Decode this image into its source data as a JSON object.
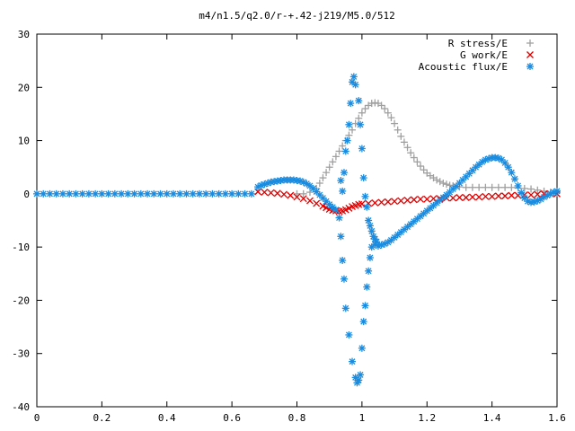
{
  "chart_data": {
    "type": "scatter",
    "title": "m4/n1.5/q2.0/r-+.42-j219/M5.0/512",
    "xlabel": "",
    "ylabel": "",
    "xlim": [
      0,
      1.6
    ],
    "ylim": [
      -40,
      30
    ],
    "xticks": [
      "0",
      "0.2",
      "0.4",
      "0.6",
      "0.8",
      "1",
      "1.2",
      "1.4",
      "1.6"
    ],
    "yticks": [
      "-40",
      "-30",
      "-20",
      "-10",
      "0",
      "10",
      "20",
      "30"
    ],
    "grid": false,
    "legend_position": "top-right",
    "series": [
      {
        "name": "R stress/E",
        "marker": "plus",
        "color": "#a0a0a0",
        "points": [
          [
            0.8,
            0
          ],
          [
            0.82,
            0
          ],
          [
            0.84,
            0.3
          ],
          [
            0.86,
            1.0
          ],
          [
            0.87,
            2.0
          ],
          [
            0.88,
            3.0
          ],
          [
            0.89,
            4.0
          ],
          [
            0.9,
            5.0
          ],
          [
            0.91,
            6.0
          ],
          [
            0.92,
            7.0
          ],
          [
            0.93,
            8.0
          ],
          [
            0.94,
            9.0
          ],
          [
            0.95,
            10.0
          ],
          [
            0.96,
            11.0
          ],
          [
            0.97,
            12.0
          ],
          [
            0.98,
            13.2
          ],
          [
            0.99,
            14.2
          ],
          [
            1.0,
            15.2
          ],
          [
            1.01,
            16.0
          ],
          [
            1.02,
            16.6
          ],
          [
            1.03,
            17.0
          ],
          [
            1.04,
            17.1
          ],
          [
            1.05,
            17.0
          ],
          [
            1.06,
            16.6
          ],
          [
            1.07,
            16.0
          ],
          [
            1.08,
            15.2
          ],
          [
            1.09,
            14.3
          ],
          [
            1.1,
            13.2
          ],
          [
            1.11,
            12.0
          ],
          [
            1.12,
            10.8
          ],
          [
            1.13,
            9.7
          ],
          [
            1.14,
            8.7
          ],
          [
            1.15,
            7.7
          ],
          [
            1.16,
            6.8
          ],
          [
            1.17,
            6.0
          ],
          [
            1.18,
            5.2
          ],
          [
            1.19,
            4.5
          ],
          [
            1.2,
            3.9
          ],
          [
            1.21,
            3.4
          ],
          [
            1.22,
            3.0
          ],
          [
            1.23,
            2.6
          ],
          [
            1.24,
            2.3
          ],
          [
            1.25,
            2.0
          ],
          [
            1.26,
            1.8
          ],
          [
            1.27,
            1.6
          ],
          [
            1.28,
            1.5
          ],
          [
            1.29,
            1.4
          ],
          [
            1.3,
            1.3
          ],
          [
            1.32,
            1.2
          ],
          [
            1.34,
            1.2
          ],
          [
            1.36,
            1.2
          ],
          [
            1.38,
            1.2
          ],
          [
            1.4,
            1.2
          ],
          [
            1.42,
            1.2
          ],
          [
            1.44,
            1.2
          ],
          [
            1.46,
            1.2
          ],
          [
            1.48,
            1.1
          ],
          [
            1.5,
            1.0
          ],
          [
            1.52,
            0.9
          ],
          [
            1.54,
            0.7
          ],
          [
            1.56,
            0.5
          ],
          [
            1.58,
            0.3
          ],
          [
            1.6,
            0.2
          ]
        ]
      },
      {
        "name": "G work/E",
        "marker": "cross",
        "color": "#e00000",
        "points": [
          [
            0.68,
            0.4
          ],
          [
            0.7,
            0.3
          ],
          [
            0.72,
            0.2
          ],
          [
            0.74,
            0.1
          ],
          [
            0.76,
            -0.1
          ],
          [
            0.78,
            -0.3
          ],
          [
            0.8,
            -0.6
          ],
          [
            0.82,
            -0.9
          ],
          [
            0.84,
            -1.3
          ],
          [
            0.86,
            -1.8
          ],
          [
            0.88,
            -2.3
          ],
          [
            0.89,
            -2.6
          ],
          [
            0.9,
            -2.9
          ],
          [
            0.91,
            -3.1
          ],
          [
            0.92,
            -3.2
          ],
          [
            0.93,
            -3.3
          ],
          [
            0.94,
            -3.2
          ],
          [
            0.95,
            -3.0
          ],
          [
            0.96,
            -2.7
          ],
          [
            0.97,
            -2.4
          ],
          [
            0.98,
            -2.2
          ],
          [
            0.99,
            -2.0
          ],
          [
            1.0,
            -1.9
          ],
          [
            1.02,
            -1.8
          ],
          [
            1.04,
            -1.7
          ],
          [
            1.06,
            -1.6
          ],
          [
            1.08,
            -1.5
          ],
          [
            1.1,
            -1.4
          ],
          [
            1.12,
            -1.3
          ],
          [
            1.14,
            -1.2
          ],
          [
            1.16,
            -1.1
          ],
          [
            1.18,
            -1.0
          ],
          [
            1.2,
            -1.0
          ],
          [
            1.22,
            -0.9
          ],
          [
            1.24,
            -0.9
          ],
          [
            1.26,
            -0.8
          ],
          [
            1.28,
            -0.8
          ],
          [
            1.3,
            -0.7
          ],
          [
            1.32,
            -0.7
          ],
          [
            1.34,
            -0.6
          ],
          [
            1.36,
            -0.6
          ],
          [
            1.38,
            -0.5
          ],
          [
            1.4,
            -0.5
          ],
          [
            1.42,
            -0.4
          ],
          [
            1.44,
            -0.4
          ],
          [
            1.46,
            -0.3
          ],
          [
            1.48,
            -0.3
          ],
          [
            1.5,
            -0.2
          ],
          [
            1.52,
            -0.2
          ],
          [
            1.54,
            -0.1
          ],
          [
            1.56,
            0
          ],
          [
            1.58,
            0
          ],
          [
            1.6,
            0
          ]
        ]
      },
      {
        "name": "Acoustic flux/E",
        "marker": "star",
        "color": "#1a8ce0",
        "points": [
          [
            0.0,
            0
          ],
          [
            0.02,
            0
          ],
          [
            0.04,
            0
          ],
          [
            0.06,
            0
          ],
          [
            0.08,
            0
          ],
          [
            0.1,
            0
          ],
          [
            0.12,
            0
          ],
          [
            0.14,
            0
          ],
          [
            0.16,
            0
          ],
          [
            0.18,
            0
          ],
          [
            0.2,
            0
          ],
          [
            0.22,
            0
          ],
          [
            0.24,
            0
          ],
          [
            0.26,
            0
          ],
          [
            0.28,
            0
          ],
          [
            0.3,
            0
          ],
          [
            0.32,
            0
          ],
          [
            0.34,
            0
          ],
          [
            0.36,
            0
          ],
          [
            0.38,
            0
          ],
          [
            0.4,
            0
          ],
          [
            0.42,
            0
          ],
          [
            0.44,
            0
          ],
          [
            0.46,
            0
          ],
          [
            0.48,
            0
          ],
          [
            0.5,
            0
          ],
          [
            0.52,
            0
          ],
          [
            0.54,
            0
          ],
          [
            0.56,
            0
          ],
          [
            0.58,
            0
          ],
          [
            0.6,
            0
          ],
          [
            0.62,
            0
          ],
          [
            0.64,
            0
          ],
          [
            0.66,
            0
          ],
          [
            0.68,
            1.3
          ],
          [
            0.69,
            1.6
          ],
          [
            0.7,
            1.8
          ],
          [
            0.71,
            2.0
          ],
          [
            0.72,
            2.2
          ],
          [
            0.73,
            2.3
          ],
          [
            0.74,
            2.4
          ],
          [
            0.75,
            2.5
          ],
          [
            0.76,
            2.6
          ],
          [
            0.77,
            2.6
          ],
          [
            0.78,
            2.6
          ],
          [
            0.79,
            2.6
          ],
          [
            0.8,
            2.5
          ],
          [
            0.81,
            2.4
          ],
          [
            0.82,
            2.2
          ],
          [
            0.83,
            1.9
          ],
          [
            0.84,
            1.5
          ],
          [
            0.85,
            1.0
          ],
          [
            0.86,
            0.4
          ],
          [
            0.87,
            -0.2
          ],
          [
            0.88,
            -0.8
          ],
          [
            0.89,
            -1.4
          ],
          [
            0.9,
            -2.0
          ],
          [
            0.91,
            -2.5
          ],
          [
            0.92,
            -3.0
          ],
          [
            0.93,
            -4.5
          ],
          [
            0.935,
            -8.0
          ],
          [
            0.94,
            -12.5
          ],
          [
            0.945,
            -16.0
          ],
          [
            0.95,
            -21.5
          ],
          [
            0.96,
            -26.5
          ],
          [
            0.97,
            -31.5
          ],
          [
            0.98,
            -34.5
          ],
          [
            0.985,
            -35.5
          ],
          [
            0.99,
            -35.0
          ],
          [
            0.995,
            -34.0
          ],
          [
            1.0,
            -29.0
          ],
          [
            1.005,
            -24.0
          ],
          [
            1.01,
            -21.0
          ],
          [
            1.015,
            -17.5
          ],
          [
            1.02,
            -14.5
          ],
          [
            1.025,
            -12.0
          ],
          [
            1.03,
            -10.0
          ],
          [
            1.04,
            -9.5
          ],
          [
            1.05,
            -9.8
          ],
          [
            0.935,
            2.5
          ],
          [
            0.94,
            0.5
          ],
          [
            0.945,
            4.0
          ],
          [
            0.95,
            8.0
          ],
          [
            0.955,
            10.0
          ],
          [
            0.96,
            13.0
          ],
          [
            0.965,
            17.0
          ],
          [
            0.97,
            21.0
          ],
          [
            0.975,
            22.0
          ],
          [
            0.98,
            20.5
          ],
          [
            0.99,
            17.5
          ],
          [
            0.995,
            13.0
          ],
          [
            1.0,
            8.5
          ],
          [
            1.005,
            3.0
          ],
          [
            1.01,
            -0.5
          ],
          [
            1.015,
            -2.5
          ],
          [
            1.02,
            -5.0
          ],
          [
            1.025,
            -6.0
          ],
          [
            1.03,
            -7.0
          ],
          [
            1.035,
            -8.0
          ],
          [
            1.04,
            -8.5
          ],
          [
            1.045,
            -9.0
          ],
          [
            1.06,
            -9.6
          ],
          [
            1.07,
            -9.4
          ],
          [
            1.08,
            -9.1
          ],
          [
            1.09,
            -8.7
          ],
          [
            1.1,
            -8.2
          ],
          [
            1.11,
            -7.7
          ],
          [
            1.12,
            -7.2
          ],
          [
            1.13,
            -6.7
          ],
          [
            1.14,
            -6.2
          ],
          [
            1.15,
            -5.7
          ],
          [
            1.16,
            -5.2
          ],
          [
            1.17,
            -4.7
          ],
          [
            1.18,
            -4.2
          ],
          [
            1.19,
            -3.7
          ],
          [
            1.2,
            -3.2
          ],
          [
            1.21,
            -2.7
          ],
          [
            1.22,
            -2.2
          ],
          [
            1.23,
            -1.7
          ],
          [
            1.24,
            -1.2
          ],
          [
            1.25,
            -0.7
          ],
          [
            1.26,
            -0.2
          ],
          [
            1.27,
            0.3
          ],
          [
            1.28,
            0.9
          ],
          [
            1.29,
            1.4
          ],
          [
            1.3,
            2.0
          ],
          [
            1.31,
            2.6
          ],
          [
            1.32,
            3.2
          ],
          [
            1.33,
            3.8
          ],
          [
            1.34,
            4.4
          ],
          [
            1.35,
            5.0
          ],
          [
            1.36,
            5.5
          ],
          [
            1.37,
            6.0
          ],
          [
            1.38,
            6.4
          ],
          [
            1.39,
            6.6
          ],
          [
            1.4,
            6.8
          ],
          [
            1.41,
            6.8
          ],
          [
            1.42,
            6.7
          ],
          [
            1.43,
            6.4
          ],
          [
            1.44,
            5.8
          ],
          [
            1.45,
            5.0
          ],
          [
            1.46,
            4.0
          ],
          [
            1.47,
            2.8
          ],
          [
            1.48,
            1.5
          ],
          [
            1.49,
            0.2
          ],
          [
            1.5,
            -0.8
          ],
          [
            1.51,
            -1.4
          ],
          [
            1.52,
            -1.6
          ],
          [
            1.53,
            -1.5
          ],
          [
            1.54,
            -1.3
          ],
          [
            1.55,
            -1.0
          ],
          [
            1.56,
            -0.6
          ],
          [
            1.57,
            -0.3
          ],
          [
            1.58,
            0
          ],
          [
            1.59,
            0.3
          ],
          [
            1.6,
            0.5
          ]
        ]
      }
    ]
  }
}
